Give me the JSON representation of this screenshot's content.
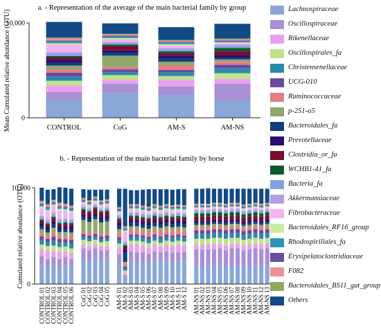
{
  "taxa": [
    {
      "name": "Lachnospiraceae",
      "color": "#8aa7d8"
    },
    {
      "name": "Oscillospiraceae",
      "color": "#a98fd6"
    },
    {
      "name": "Rikenellaceae",
      "color": "#e9a0ee"
    },
    {
      "name": "Oscillospirales_fa",
      "color": "#bfe28a"
    },
    {
      "name": "Christensenellaceae",
      "color": "#2a8aab"
    },
    {
      "name": "UCG-010",
      "color": "#6b4a9c"
    },
    {
      "name": "Ruminococcaceae",
      "color": "#e27d85"
    },
    {
      "name": "p-251-o5",
      "color": "#8fa86c"
    },
    {
      "name": "Bacteroidales_fa",
      "color": "#103d7c"
    },
    {
      "name": "Prevotellaceae",
      "color": "#2a0d73"
    },
    {
      "name": "Clostridia_or_fa",
      "color": "#7c0b2e"
    },
    {
      "name": "WCHB1-41_fa",
      "color": "#0d5a2a"
    },
    {
      "name": "Bacteria_fa",
      "color": "#7fa3e0"
    },
    {
      "name": "Akkermansiaceae",
      "color": "#b59ce6"
    },
    {
      "name": "Fibrobacteraceae",
      "color": "#f2b3f2"
    },
    {
      "name": "Bacteroidales_RF16_group",
      "color": "#c9ec9c"
    },
    {
      "name": "Rhodospirillales_fa",
      "color": "#2f93b8"
    },
    {
      "name": "Erysipelatoclostridiaceae",
      "color": "#6a4f9f"
    },
    {
      "name": "F082",
      "color": "#ef8e96"
    },
    {
      "name": "Bacteroidales_BS11_gut_group",
      "color": "#8fa866"
    },
    {
      "name": "Others",
      "color": "#124a86"
    }
  ],
  "chart_data": [
    {
      "type": "bar",
      "stacked": true,
      "title": "a. - Representation of the average of the main bacterial family by group",
      "ylabel": "Mean Cumulated relative abundance (OTU)",
      "ylim": [
        0,
        10000
      ],
      "ytick_labels": [
        "0",
        "10,000"
      ],
      "categories": [
        "CONTROL",
        "CoG",
        "AM-S",
        "AM-NS"
      ],
      "series": [
        {
          "name": "Lachnospiraceae",
          "values": [
            1900,
            2600,
            2400,
            1900
          ]
        },
        {
          "name": "Oscillospiraceae",
          "values": [
            800,
            1000,
            900,
            1700
          ]
        },
        {
          "name": "Rikenellaceae",
          "values": [
            700,
            400,
            700,
            500
          ]
        },
        {
          "name": "Oscillospirales_fa",
          "values": [
            500,
            500,
            400,
            600
          ]
        },
        {
          "name": "Christensenellaceae",
          "values": [
            450,
            300,
            400,
            500
          ]
        },
        {
          "name": "UCG-010",
          "values": [
            400,
            300,
            250,
            400
          ]
        },
        {
          "name": "Ruminococcaceae",
          "values": [
            350,
            250,
            500,
            300
          ]
        },
        {
          "name": "p-251-o5",
          "values": [
            400,
            1200,
            350,
            250
          ]
        },
        {
          "name": "Bacteroidales_fa",
          "values": [
            300,
            300,
            350,
            200
          ]
        },
        {
          "name": "Prevotellaceae",
          "values": [
            300,
            250,
            300,
            250
          ]
        },
        {
          "name": "Clostridia_or_fa",
          "values": [
            250,
            450,
            250,
            400
          ]
        },
        {
          "name": "WCHB1-41_fa",
          "values": [
            150,
            150,
            200,
            350
          ]
        },
        {
          "name": "Bacteria_fa",
          "values": [
            250,
            200,
            200,
            200
          ]
        },
        {
          "name": "Akkermansiaceae",
          "values": [
            150,
            100,
            150,
            150
          ]
        },
        {
          "name": "Fibrobacteraceae",
          "values": [
            800,
            250,
            250,
            150
          ]
        },
        {
          "name": "Bacteroidales_RF16_group",
          "values": [
            150,
            150,
            150,
            100
          ]
        },
        {
          "name": "Rhodospirillales_fa",
          "values": [
            200,
            150,
            150,
            100
          ]
        },
        {
          "name": "Erysipelatoclostridiaceae",
          "values": [
            100,
            100,
            100,
            100
          ]
        },
        {
          "name": "F082",
          "values": [
            200,
            100,
            100,
            100
          ]
        },
        {
          "name": "Bacteroidales_BS11_gut_group",
          "values": [
            100,
            100,
            100,
            100
          ]
        },
        {
          "name": "Others",
          "values": [
            1650,
            1100,
            1350,
            1550
          ]
        }
      ]
    },
    {
      "type": "bar",
      "stacked": true,
      "title": "b. - Representation of the main bacterial family by horse",
      "ylabel": "Cumulated relative abundance (OTU)",
      "ylim": [
        0,
        10000
      ],
      "ytick_labels": [
        "0",
        "10,000"
      ],
      "groups": [
        {
          "label": "CONTROL",
          "categories": [
            "CONTROL 01",
            "CONTROL 02",
            "CONTROL 03",
            "CONTROL 04",
            "CONTROL 05",
            "CONTROL 06"
          ]
        },
        {
          "label": "CoG",
          "categories": [
            "CoG 01",
            "CoG 02",
            "CoG 03",
            "CoG 04",
            "CoG 05"
          ]
        },
        {
          "label": "AM-S",
          "categories": [
            "AM-S 01",
            "AM-S 02",
            "AM-S 03",
            "AM-S 04",
            "AM-S 05",
            "AM-S 06",
            "AM-S 07",
            "AM-S 08",
            "AM-S 09",
            "AM-S 10",
            "AM-S 11",
            "AM-S 12"
          ]
        },
        {
          "label": "AM-NS",
          "categories": [
            "AM-NS 01",
            "AM-NS 02",
            "AM-NS 03",
            "AM-NS 04",
            "AM-NS 05",
            "AM-NS 06",
            "AM-NS 07",
            "AM-NS 08",
            "AM-NS 09",
            "AM-NS 10",
            "AM-NS 11",
            "AM-NS 12",
            "AM-NS 13"
          ]
        }
      ],
      "series_names": "taxa",
      "values": [
        [
          2000,
          900,
          700,
          500,
          450,
          400,
          350,
          400,
          300,
          300,
          250,
          150,
          250,
          150,
          800,
          150,
          200,
          100,
          200,
          100,
          1350
        ],
        [
          1800,
          800,
          900,
          450,
          400,
          350,
          300,
          350,
          300,
          250,
          250,
          150,
          200,
          150,
          900,
          150,
          200,
          100,
          200,
          100,
          1500
        ],
        [
          2100,
          700,
          600,
          600,
          500,
          450,
          400,
          500,
          350,
          300,
          300,
          200,
          250,
          150,
          700,
          150,
          150,
          100,
          150,
          100,
          1100
        ],
        [
          1700,
          900,
          800,
          450,
          450,
          400,
          350,
          350,
          250,
          300,
          250,
          150,
          250,
          150,
          900,
          150,
          200,
          100,
          250,
          100,
          1600
        ],
        [
          2000,
          800,
          600,
          500,
          400,
          350,
          300,
          450,
          300,
          300,
          250,
          150,
          250,
          150,
          800,
          150,
          200,
          100,
          200,
          100,
          1650
        ],
        [
          1900,
          700,
          600,
          500,
          500,
          400,
          400,
          350,
          300,
          350,
          200,
          150,
          250,
          150,
          700,
          150,
          200,
          100,
          150,
          100,
          1750
        ],
        [
          2700,
          1000,
          400,
          500,
          300,
          300,
          250,
          1200,
          300,
          250,
          450,
          150,
          200,
          100,
          250,
          150,
          150,
          100,
          100,
          100,
          900
        ],
        [
          2400,
          1100,
          400,
          550,
          300,
          300,
          300,
          1100,
          300,
          250,
          400,
          150,
          200,
          100,
          250,
          150,
          150,
          100,
          100,
          100,
          1100
        ],
        [
          2800,
          900,
          400,
          500,
          300,
          300,
          250,
          1300,
          300,
          250,
          500,
          150,
          200,
          100,
          250,
          150,
          150,
          100,
          100,
          100,
          700
        ],
        [
          2500,
          1000,
          400,
          450,
          300,
          300,
          250,
          1200,
          300,
          250,
          450,
          150,
          200,
          100,
          250,
          150,
          150,
          100,
          100,
          100,
          1100
        ],
        [
          2600,
          950,
          400,
          500,
          300,
          300,
          250,
          1200,
          300,
          250,
          450,
          150,
          200,
          100,
          250,
          150,
          150,
          100,
          100,
          100,
          1000
        ],
        [
          2200,
          900,
          700,
          400,
          400,
          250,
          500,
          350,
          350,
          300,
          250,
          200,
          200,
          150,
          250,
          150,
          150,
          100,
          100,
          100,
          1900
        ],
        [
          600,
          300,
          200,
          300,
          200,
          200,
          300,
          200,
          1000,
          300,
          250,
          200,
          200,
          150,
          1000,
          150,
          150,
          100,
          100,
          100,
          3900
        ],
        [
          2500,
          900,
          700,
          400,
          400,
          250,
          500,
          350,
          350,
          300,
          250,
          200,
          200,
          150,
          250,
          150,
          150,
          100,
          100,
          100,
          1450
        ],
        [
          2300,
          1000,
          800,
          400,
          400,
          250,
          500,
          350,
          350,
          300,
          250,
          200,
          200,
          150,
          250,
          150,
          150,
          100,
          100,
          100,
          1450
        ],
        [
          2400,
          900,
          700,
          400,
          400,
          250,
          450,
          350,
          350,
          300,
          250,
          200,
          200,
          150,
          250,
          150,
          150,
          100,
          100,
          100,
          1650
        ],
        [
          2200,
          900,
          700,
          450,
          400,
          250,
          500,
          350,
          350,
          300,
          250,
          200,
          200,
          150,
          250,
          150,
          150,
          100,
          100,
          100,
          1800
        ],
        [
          2600,
          800,
          700,
          400,
          400,
          250,
          500,
          350,
          350,
          300,
          250,
          200,
          200,
          150,
          250,
          150,
          150,
          100,
          100,
          100,
          1550
        ],
        [
          2400,
          900,
          600,
          400,
          400,
          250,
          550,
          350,
          350,
          300,
          250,
          200,
          200,
          150,
          250,
          150,
          150,
          100,
          100,
          100,
          1700
        ],
        [
          2500,
          900,
          700,
          400,
          400,
          250,
          500,
          350,
          350,
          300,
          250,
          200,
          200,
          150,
          250,
          150,
          150,
          100,
          100,
          100,
          1550
        ],
        [
          2300,
          1000,
          700,
          400,
          400,
          250,
          500,
          350,
          350,
          300,
          250,
          200,
          200,
          150,
          250,
          150,
          150,
          100,
          100,
          100,
          1600
        ],
        [
          2400,
          900,
          800,
          400,
          400,
          250,
          450,
          350,
          350,
          300,
          250,
          200,
          200,
          150,
          250,
          150,
          150,
          100,
          100,
          100,
          1600
        ],
        [
          2500,
          800,
          700,
          400,
          400,
          250,
          500,
          350,
          350,
          300,
          250,
          200,
          200,
          150,
          250,
          150,
          150,
          100,
          100,
          100,
          1650
        ],
        [
          1900,
          1700,
          500,
          600,
          500,
          400,
          300,
          250,
          200,
          250,
          400,
          350,
          200,
          150,
          150,
          100,
          100,
          100,
          100,
          100,
          1550
        ],
        [
          1800,
          1800,
          500,
          600,
          500,
          400,
          300,
          250,
          200,
          250,
          400,
          350,
          200,
          150,
          150,
          100,
          100,
          100,
          100,
          100,
          1550
        ],
        [
          2000,
          1600,
          500,
          600,
          500,
          400,
          300,
          250,
          200,
          250,
          400,
          350,
          200,
          150,
          150,
          100,
          100,
          100,
          100,
          100,
          1600
        ],
        [
          1900,
          1700,
          600,
          600,
          500,
          400,
          300,
          250,
          200,
          250,
          400,
          350,
          200,
          150,
          150,
          100,
          100,
          100,
          100,
          100,
          1450
        ],
        [
          2100,
          1600,
          500,
          600,
          500,
          400,
          300,
          250,
          200,
          250,
          400,
          350,
          200,
          150,
          150,
          100,
          100,
          100,
          100,
          100,
          1450
        ],
        [
          1800,
          1700,
          500,
          700,
          500,
          400,
          300,
          250,
          200,
          250,
          400,
          350,
          200,
          150,
          150,
          100,
          100,
          100,
          100,
          100,
          1550
        ],
        [
          1900,
          1800,
          500,
          600,
          500,
          400,
          300,
          250,
          200,
          250,
          400,
          350,
          200,
          150,
          150,
          100,
          100,
          100,
          100,
          100,
          1450
        ],
        [
          2000,
          1700,
          500,
          600,
          500,
          400,
          300,
          250,
          200,
          250,
          400,
          350,
          200,
          150,
          150,
          100,
          100,
          100,
          100,
          100,
          1450
        ],
        [
          1900,
          1600,
          500,
          600,
          500,
          400,
          300,
          250,
          200,
          250,
          400,
          350,
          200,
          150,
          150,
          100,
          100,
          100,
          100,
          100,
          1650
        ],
        [
          1800,
          1800,
          500,
          600,
          500,
          400,
          300,
          250,
          200,
          250,
          400,
          350,
          200,
          150,
          150,
          100,
          100,
          100,
          100,
          100,
          1550
        ],
        [
          2000,
          1700,
          500,
          600,
          500,
          400,
          300,
          250,
          200,
          250,
          400,
          350,
          200,
          150,
          150,
          100,
          100,
          100,
          100,
          100,
          1450
        ],
        [
          1900,
          1700,
          500,
          600,
          500,
          400,
          300,
          250,
          200,
          250,
          400,
          350,
          200,
          150,
          150,
          100,
          100,
          100,
          100,
          100,
          1550
        ],
        [
          2000,
          1700,
          500,
          600,
          500,
          400,
          300,
          250,
          200,
          250,
          400,
          350,
          200,
          150,
          150,
          100,
          100,
          100,
          100,
          100,
          1450
        ]
      ]
    }
  ]
}
